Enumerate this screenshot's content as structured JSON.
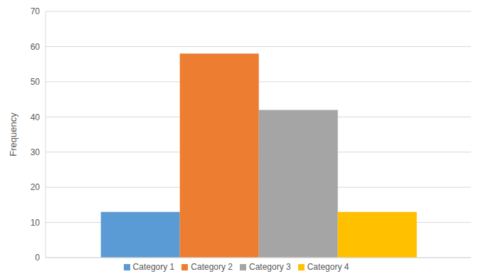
{
  "chart_data": {
    "type": "bar",
    "categories": [
      null
    ],
    "series": [
      {
        "name": "Category 1",
        "color": "#5b9bd5",
        "values": [
          13
        ]
      },
      {
        "name": "Category 2",
        "color": "#ed7d31",
        "values": [
          58
        ]
      },
      {
        "name": "Category 3",
        "color": "#a5a5a5",
        "values": [
          42
        ]
      },
      {
        "name": "Category 4",
        "color": "#ffc000",
        "values": [
          13
        ]
      }
    ],
    "y_label": "Frequency",
    "ylim": [
      0,
      70
    ],
    "yticks": [
      0,
      10,
      20,
      30,
      40,
      50,
      60,
      70
    ],
    "grid": true,
    "legend": "bottom",
    "tick_labels": "y"
  }
}
